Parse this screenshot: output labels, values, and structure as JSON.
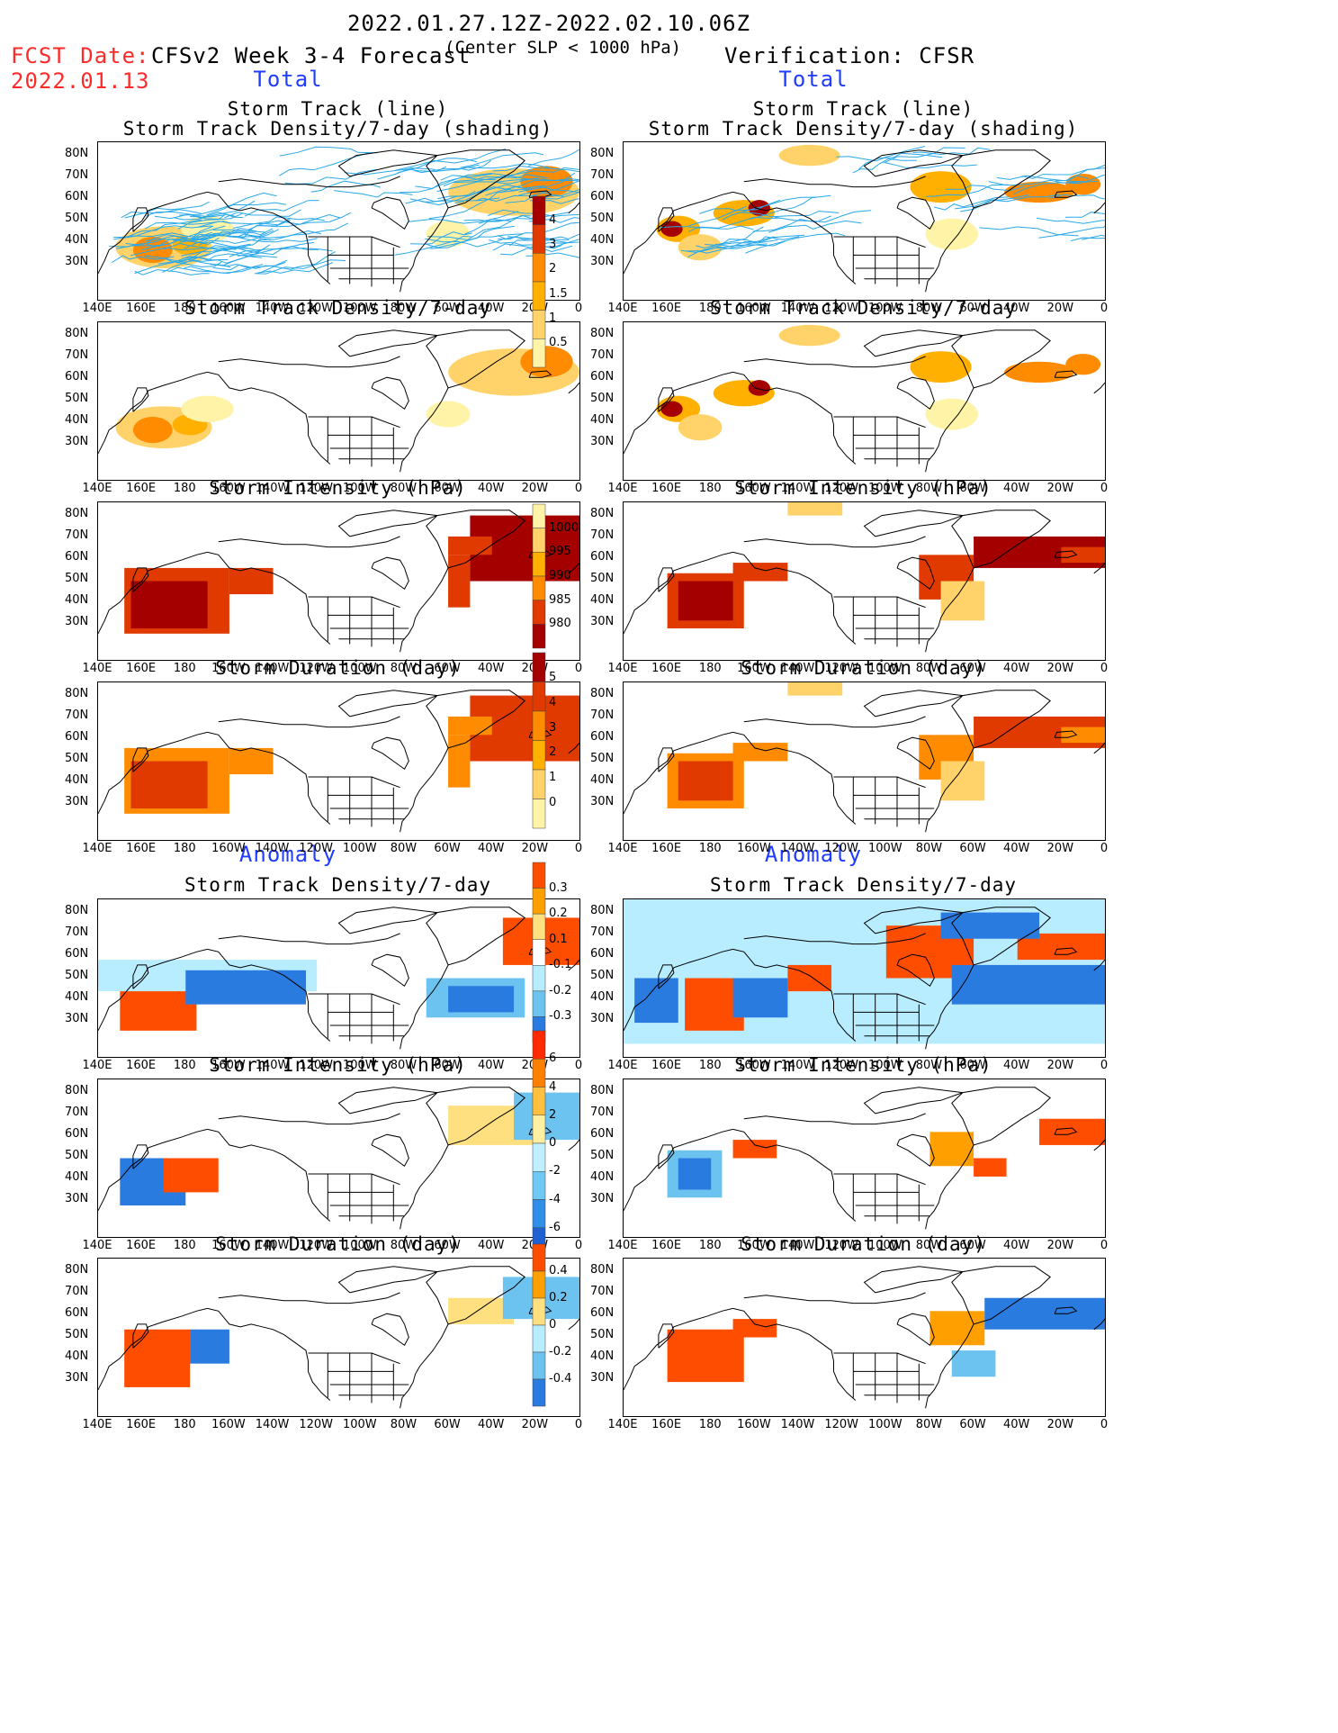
{
  "header": {
    "period": "2022.01.27.12Z-2022.02.10.06Z",
    "fcst_label": "FCST Date:",
    "fcst_date": "2022.01.13",
    "model": "CFSv2 Week 3-4 Forecast",
    "criterion": "(Center SLP < 1000 hPa)",
    "verification": "Verification: CFSR"
  },
  "sections": {
    "total": "Total",
    "anomaly": "Anomaly"
  },
  "panel_titles": {
    "track_line": "Storm Track (line)",
    "track_shading": "Storm Track Density/7-day (shading)",
    "density": "Storm Track Density/7-day",
    "intensity": "Storm Intensity (hPa)",
    "duration": "Storm Duration (day)"
  },
  "axes": {
    "lat_ticks": [
      "80N",
      "70N",
      "60N",
      "50N",
      "40N",
      "30N"
    ],
    "lon_ticks": [
      "140E",
      "160E",
      "180",
      "160W",
      "140W",
      "120W",
      "100W",
      "80W",
      "60W",
      "40W",
      "20W",
      "0"
    ]
  },
  "colorbars": {
    "density": {
      "labels": [
        "4",
        "3",
        "2",
        "1.5",
        "1",
        "0.5"
      ],
      "colors": [
        "#a50000",
        "#e03a00",
        "#ff8c00",
        "#ffb000",
        "#ffd36a",
        "#fff3a8"
      ]
    },
    "intensity": {
      "labels": [
        "1000",
        "995",
        "990",
        "985",
        "980"
      ],
      "colors": [
        "#fff3a8",
        "#ffd36a",
        "#ffb000",
        "#ff8c00",
        "#e03a00",
        "#a50000"
      ]
    },
    "duration": {
      "labels": [
        "5",
        "4",
        "3",
        "2",
        "1",
        "0"
      ],
      "colors": [
        "#a50000",
        "#e03a00",
        "#ff8c00",
        "#ffb000",
        "#ffd36a",
        "#fff3a8"
      ]
    },
    "density_anom": {
      "labels": [
        "0.3",
        "0.2",
        "0.1",
        "-0.1",
        "-0.2",
        "-0.3"
      ],
      "colors": [
        "#ff4d00",
        "#ffa000",
        "#ffe080",
        "#ffffff",
        "#b8ecff",
        "#6cc3f0",
        "#2a7be0"
      ]
    },
    "intensity_anom": {
      "labels": [
        "6",
        "4",
        "2",
        "0",
        "-2",
        "-4",
        "-6"
      ],
      "colors": [
        "#ff2a00",
        "#ff8000",
        "#ffc040",
        "#ffefa0",
        "#c0f0ff",
        "#70c8f4",
        "#3090e8",
        "#2060d0"
      ]
    },
    "duration_anom": {
      "labels": [
        "0.4",
        "0.2",
        "0",
        "-0.2",
        "-0.4"
      ],
      "colors": [
        "#ff4d00",
        "#ffa000",
        "#ffe080",
        "#b8ecff",
        "#6cc3f0",
        "#2a7be0"
      ]
    }
  }
}
